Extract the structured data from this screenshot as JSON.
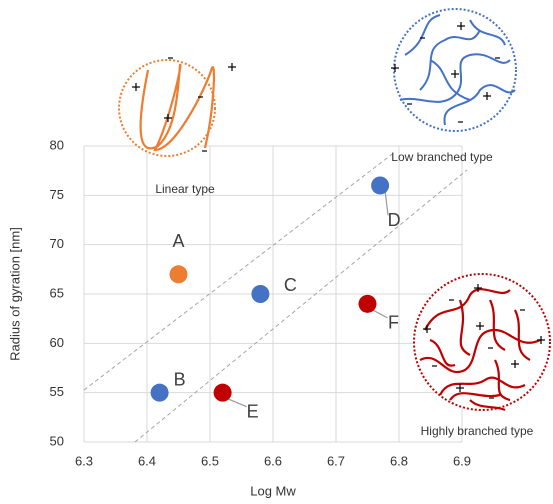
{
  "chart_data": {
    "type": "scatter",
    "x_label": "Log Mw",
    "y_label": "Radius of gyration [nm]",
    "annotations": [
      "Linear type",
      "Low branched type",
      "Highly branched type"
    ],
    "points": [
      {
        "label": "A",
        "x": 6.45,
        "y": 67,
        "color": "#ED7D31"
      },
      {
        "label": "B",
        "x": 6.42,
        "y": 55,
        "color": "#4472C4"
      },
      {
        "label": "C",
        "x": 6.58,
        "y": 65,
        "color": "#4472C4"
      },
      {
        "label": "D",
        "x": 6.77,
        "y": 76,
        "color": "#4472C4"
      },
      {
        "label": "E",
        "x": 6.52,
        "y": 55,
        "color": "#C00000"
      },
      {
        "label": "F",
        "x": 6.75,
        "y": 64,
        "color": "#C00000"
      }
    ],
    "xlim": [
      6.3,
      6.9
    ],
    "xticks": [
      6.3,
      6.4,
      6.5,
      6.6,
      6.7,
      6.8,
      6.9
    ],
    "ylim": [
      50,
      80
    ],
    "yticks": [
      50,
      55,
      60,
      65,
      70,
      75,
      80
    ],
    "grid": true
  }
}
